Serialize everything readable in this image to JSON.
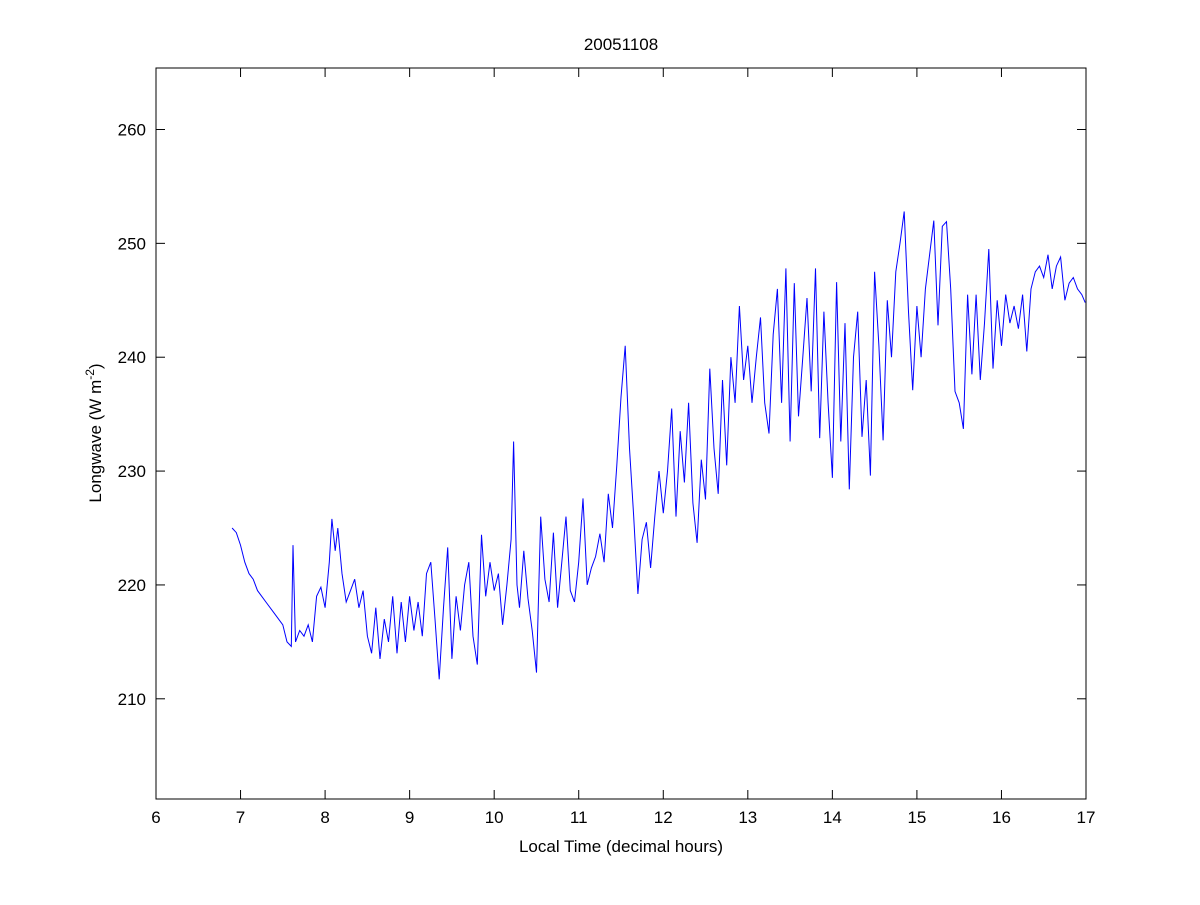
{
  "chart_data": {
    "type": "line",
    "title": "20051108",
    "xlabel": "Local Time (decimal hours)",
    "ylabel_main": "Longwave (W m",
    "ylabel_sup": "-2",
    "ylabel_close": ")",
    "xlim": [
      6,
      17
    ],
    "ylim": [
      201.2,
      265.4
    ],
    "xticks": [
      6,
      7,
      8,
      9,
      10,
      11,
      12,
      13,
      14,
      15,
      16,
      17
    ],
    "yticks": [
      210,
      220,
      230,
      240,
      250,
      260
    ],
    "grid": false,
    "line_color": "#0000ff",
    "series": [
      {
        "name": "Longwave",
        "x": [
          6.9,
          6.95,
          7.0,
          7.05,
          7.1,
          7.15,
          7.2,
          7.3,
          7.4,
          7.5,
          7.55,
          7.6,
          7.62,
          7.65,
          7.7,
          7.75,
          7.8,
          7.85,
          7.9,
          7.95,
          8.0,
          8.05,
          8.08,
          8.12,
          8.15,
          8.2,
          8.25,
          8.3,
          8.35,
          8.4,
          8.45,
          8.5,
          8.55,
          8.6,
          8.65,
          8.7,
          8.75,
          8.8,
          8.85,
          8.9,
          8.95,
          9.0,
          9.05,
          9.1,
          9.15,
          9.2,
          9.25,
          9.3,
          9.35,
          9.4,
          9.45,
          9.5,
          9.55,
          9.6,
          9.65,
          9.7,
          9.75,
          9.8,
          9.85,
          9.9,
          9.95,
          10.0,
          10.05,
          10.1,
          10.15,
          10.2,
          10.23,
          10.27,
          10.3,
          10.35,
          10.4,
          10.45,
          10.5,
          10.55,
          10.6,
          10.65,
          10.7,
          10.75,
          10.8,
          10.85,
          10.9,
          10.95,
          11.0,
          11.05,
          11.1,
          11.15,
          11.2,
          11.25,
          11.3,
          11.35,
          11.4,
          11.45,
          11.5,
          11.55,
          11.6,
          11.65,
          11.7,
          11.75,
          11.8,
          11.85,
          11.9,
          11.95,
          12.0,
          12.05,
          12.1,
          12.15,
          12.2,
          12.25,
          12.3,
          12.35,
          12.4,
          12.45,
          12.5,
          12.55,
          12.6,
          12.65,
          12.7,
          12.75,
          12.8,
          12.85,
          12.9,
          12.95,
          13.0,
          13.05,
          13.1,
          13.15,
          13.2,
          13.25,
          13.3,
          13.35,
          13.4,
          13.45,
          13.5,
          13.55,
          13.6,
          13.65,
          13.7,
          13.75,
          13.8,
          13.85,
          13.9,
          13.95,
          14.0,
          14.05,
          14.1,
          14.15,
          14.2,
          14.25,
          14.3,
          14.35,
          14.4,
          14.45,
          14.5,
          14.55,
          14.6,
          14.65,
          14.7,
          14.75,
          14.8,
          14.85,
          14.9,
          14.95,
          15.0,
          15.05,
          15.1,
          15.15,
          15.2,
          15.25,
          15.3,
          15.35,
          15.4,
          15.45,
          15.5,
          15.55,
          15.6,
          15.65,
          15.7,
          15.75,
          15.8,
          15.85,
          15.9,
          15.95,
          16.0,
          16.05,
          16.1,
          16.15,
          16.2,
          16.25,
          16.3,
          16.35,
          16.4,
          16.45,
          16.5,
          16.55,
          16.6,
          16.65,
          16.7,
          16.75,
          16.8,
          16.85,
          16.9,
          16.95,
          16.99
        ],
        "y": [
          225,
          224.6,
          223.5,
          222,
          221,
          220.5,
          219.5,
          218.5,
          217.5,
          216.5,
          215,
          214.6,
          223.5,
          215,
          216,
          215.5,
          216.5,
          215,
          219,
          219.8,
          218,
          222,
          225.8,
          223,
          225,
          221,
          218.5,
          219.5,
          220.5,
          218,
          219.5,
          215.5,
          214,
          218,
          213.5,
          217,
          215,
          219,
          214,
          218.5,
          215,
          219,
          216,
          218.5,
          215.5,
          221,
          222,
          217,
          211.7,
          218,
          223.3,
          213.5,
          219,
          216,
          220,
          222,
          215.5,
          213,
          224.4,
          219,
          222,
          219.5,
          221,
          216.5,
          220,
          224,
          232.6,
          220,
          218,
          223,
          218.8,
          216,
          212.3,
          226,
          220.5,
          218.5,
          224.6,
          218,
          222,
          226,
          219.5,
          218.5,
          222,
          227.6,
          220,
          221.5,
          222.5,
          224.5,
          222,
          228,
          225,
          230.5,
          236.5,
          241,
          232,
          226,
          219.2,
          224,
          225.5,
          221.5,
          226,
          230,
          226.3,
          230,
          235.5,
          226,
          233.5,
          229,
          236,
          227.2,
          223.7,
          231,
          227.5,
          239,
          232,
          228,
          238,
          230.5,
          240,
          236,
          244.5,
          238,
          241,
          236,
          240,
          243.5,
          236,
          233.3,
          242,
          246,
          236,
          247.8,
          232.6,
          246.5,
          234.8,
          240,
          245.2,
          237,
          247.8,
          232.9,
          244,
          236,
          229.4,
          246.6,
          232.6,
          243,
          228.4,
          240,
          244,
          233,
          238,
          229.6,
          247.5,
          241,
          232.7,
          245,
          240,
          247.5,
          250,
          252.8,
          244,
          237.1,
          244.5,
          240,
          246,
          249,
          252,
          242.8,
          251.5,
          251.9,
          246,
          237,
          236,
          233.7,
          245.5,
          238.5,
          245.5,
          238,
          243,
          249.5,
          239,
          245,
          241,
          245.5,
          243,
          244.5,
          242.5,
          245.5,
          240.5,
          246,
          247.5,
          248,
          247,
          249,
          246,
          248,
          248.8,
          245,
          246.5,
          247,
          246,
          245.5,
          244.8
        ]
      }
    ]
  }
}
